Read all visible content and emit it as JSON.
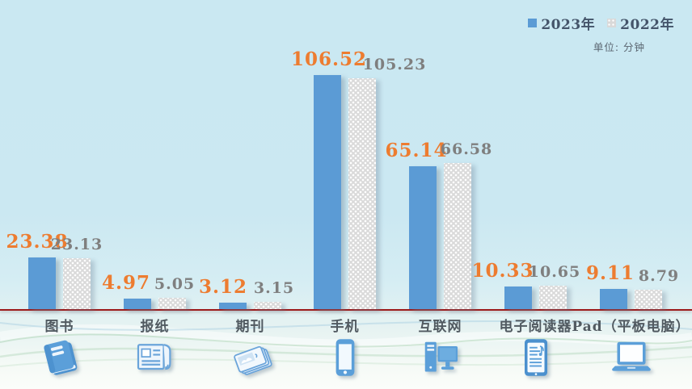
{
  "legend": {
    "items": [
      {
        "label": "2023年",
        "swatch": "solid-blue"
      },
      {
        "label": "2022年",
        "swatch": "dotted-gray"
      }
    ]
  },
  "unit_label": "单位: 分钟",
  "colors": {
    "bar_2023": "#5b9bd5",
    "bar_2022": "#dadada",
    "value_label_2023": "#ed7c30",
    "value_label_2022": "#7f7f7f",
    "baseline": "#9c1a1a",
    "background": "#cae8f2"
  },
  "icons": [
    "book-icon",
    "newspaper-icon",
    "magazine-icon",
    "smartphone-icon",
    "desktop-computer-icon",
    "ereader-icon",
    "laptop-icon"
  ],
  "chart_data": {
    "type": "bar",
    "title": "",
    "unit": "分钟",
    "categories": [
      "图书",
      "报纸",
      "期刊",
      "手机",
      "互联网",
      "电子阅读器",
      "Pad（平板电脑）"
    ],
    "series": [
      {
        "name": "2023年",
        "values": [
          23.38,
          4.97,
          3.12,
          106.52,
          65.14,
          10.33,
          9.11
        ]
      },
      {
        "name": "2022年",
        "values": [
          23.13,
          5.05,
          3.15,
          105.23,
          66.58,
          10.65,
          8.79
        ]
      }
    ],
    "ylim": [
      0,
      110
    ],
    "grid": false,
    "value_labels_shown": true,
    "legend_position": "top-right",
    "xlabel": "",
    "ylabel": ""
  }
}
